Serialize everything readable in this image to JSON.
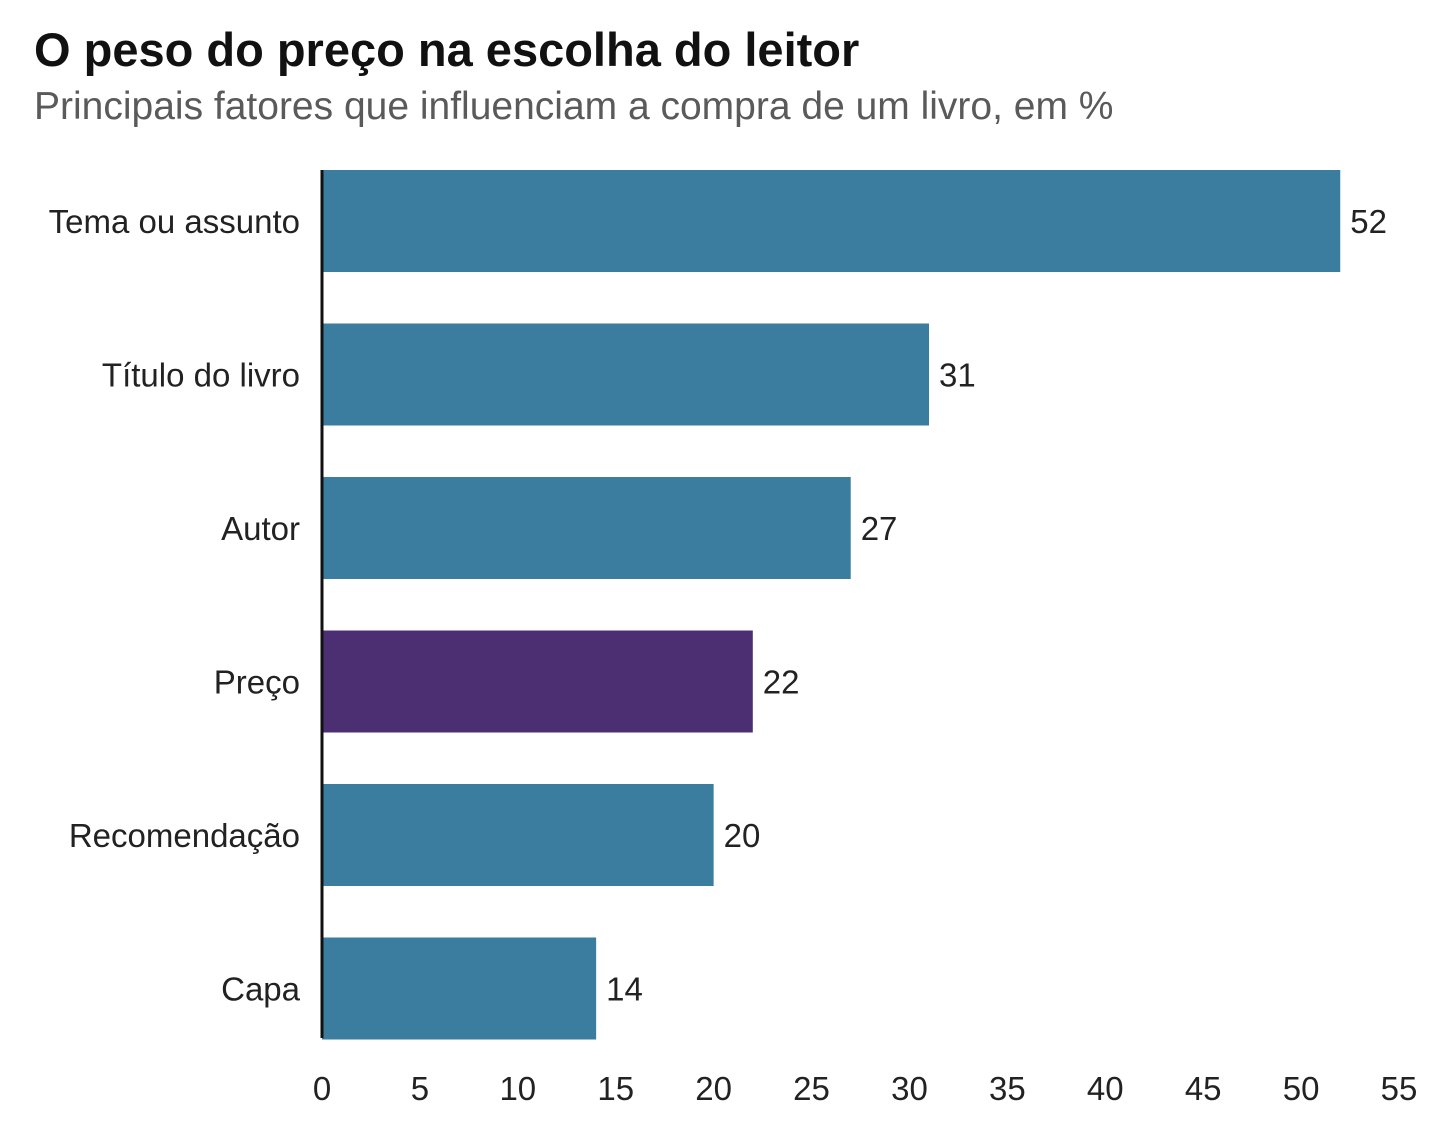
{
  "chart_data": {
    "type": "bar",
    "orientation": "horizontal",
    "title": "O peso do preço na escolha do leitor",
    "subtitle": "Principais fatores que influenciam a compra de um livro, em %",
    "categories": [
      "Tema ou assunto",
      "Título do livro",
      "Autor",
      "Preço",
      "Recomendação",
      "Capa"
    ],
    "values": [
      52,
      31,
      27,
      22,
      20,
      14
    ],
    "highlight_category": "Preço",
    "xlim": [
      0,
      55
    ],
    "xticks": [
      0,
      5,
      10,
      15,
      20,
      25,
      30,
      35,
      40,
      45,
      50,
      55
    ],
    "grid": false,
    "colors": {
      "bar": "#3b7d9e",
      "highlight": "#4b2f72",
      "axis": "#111111"
    }
  }
}
